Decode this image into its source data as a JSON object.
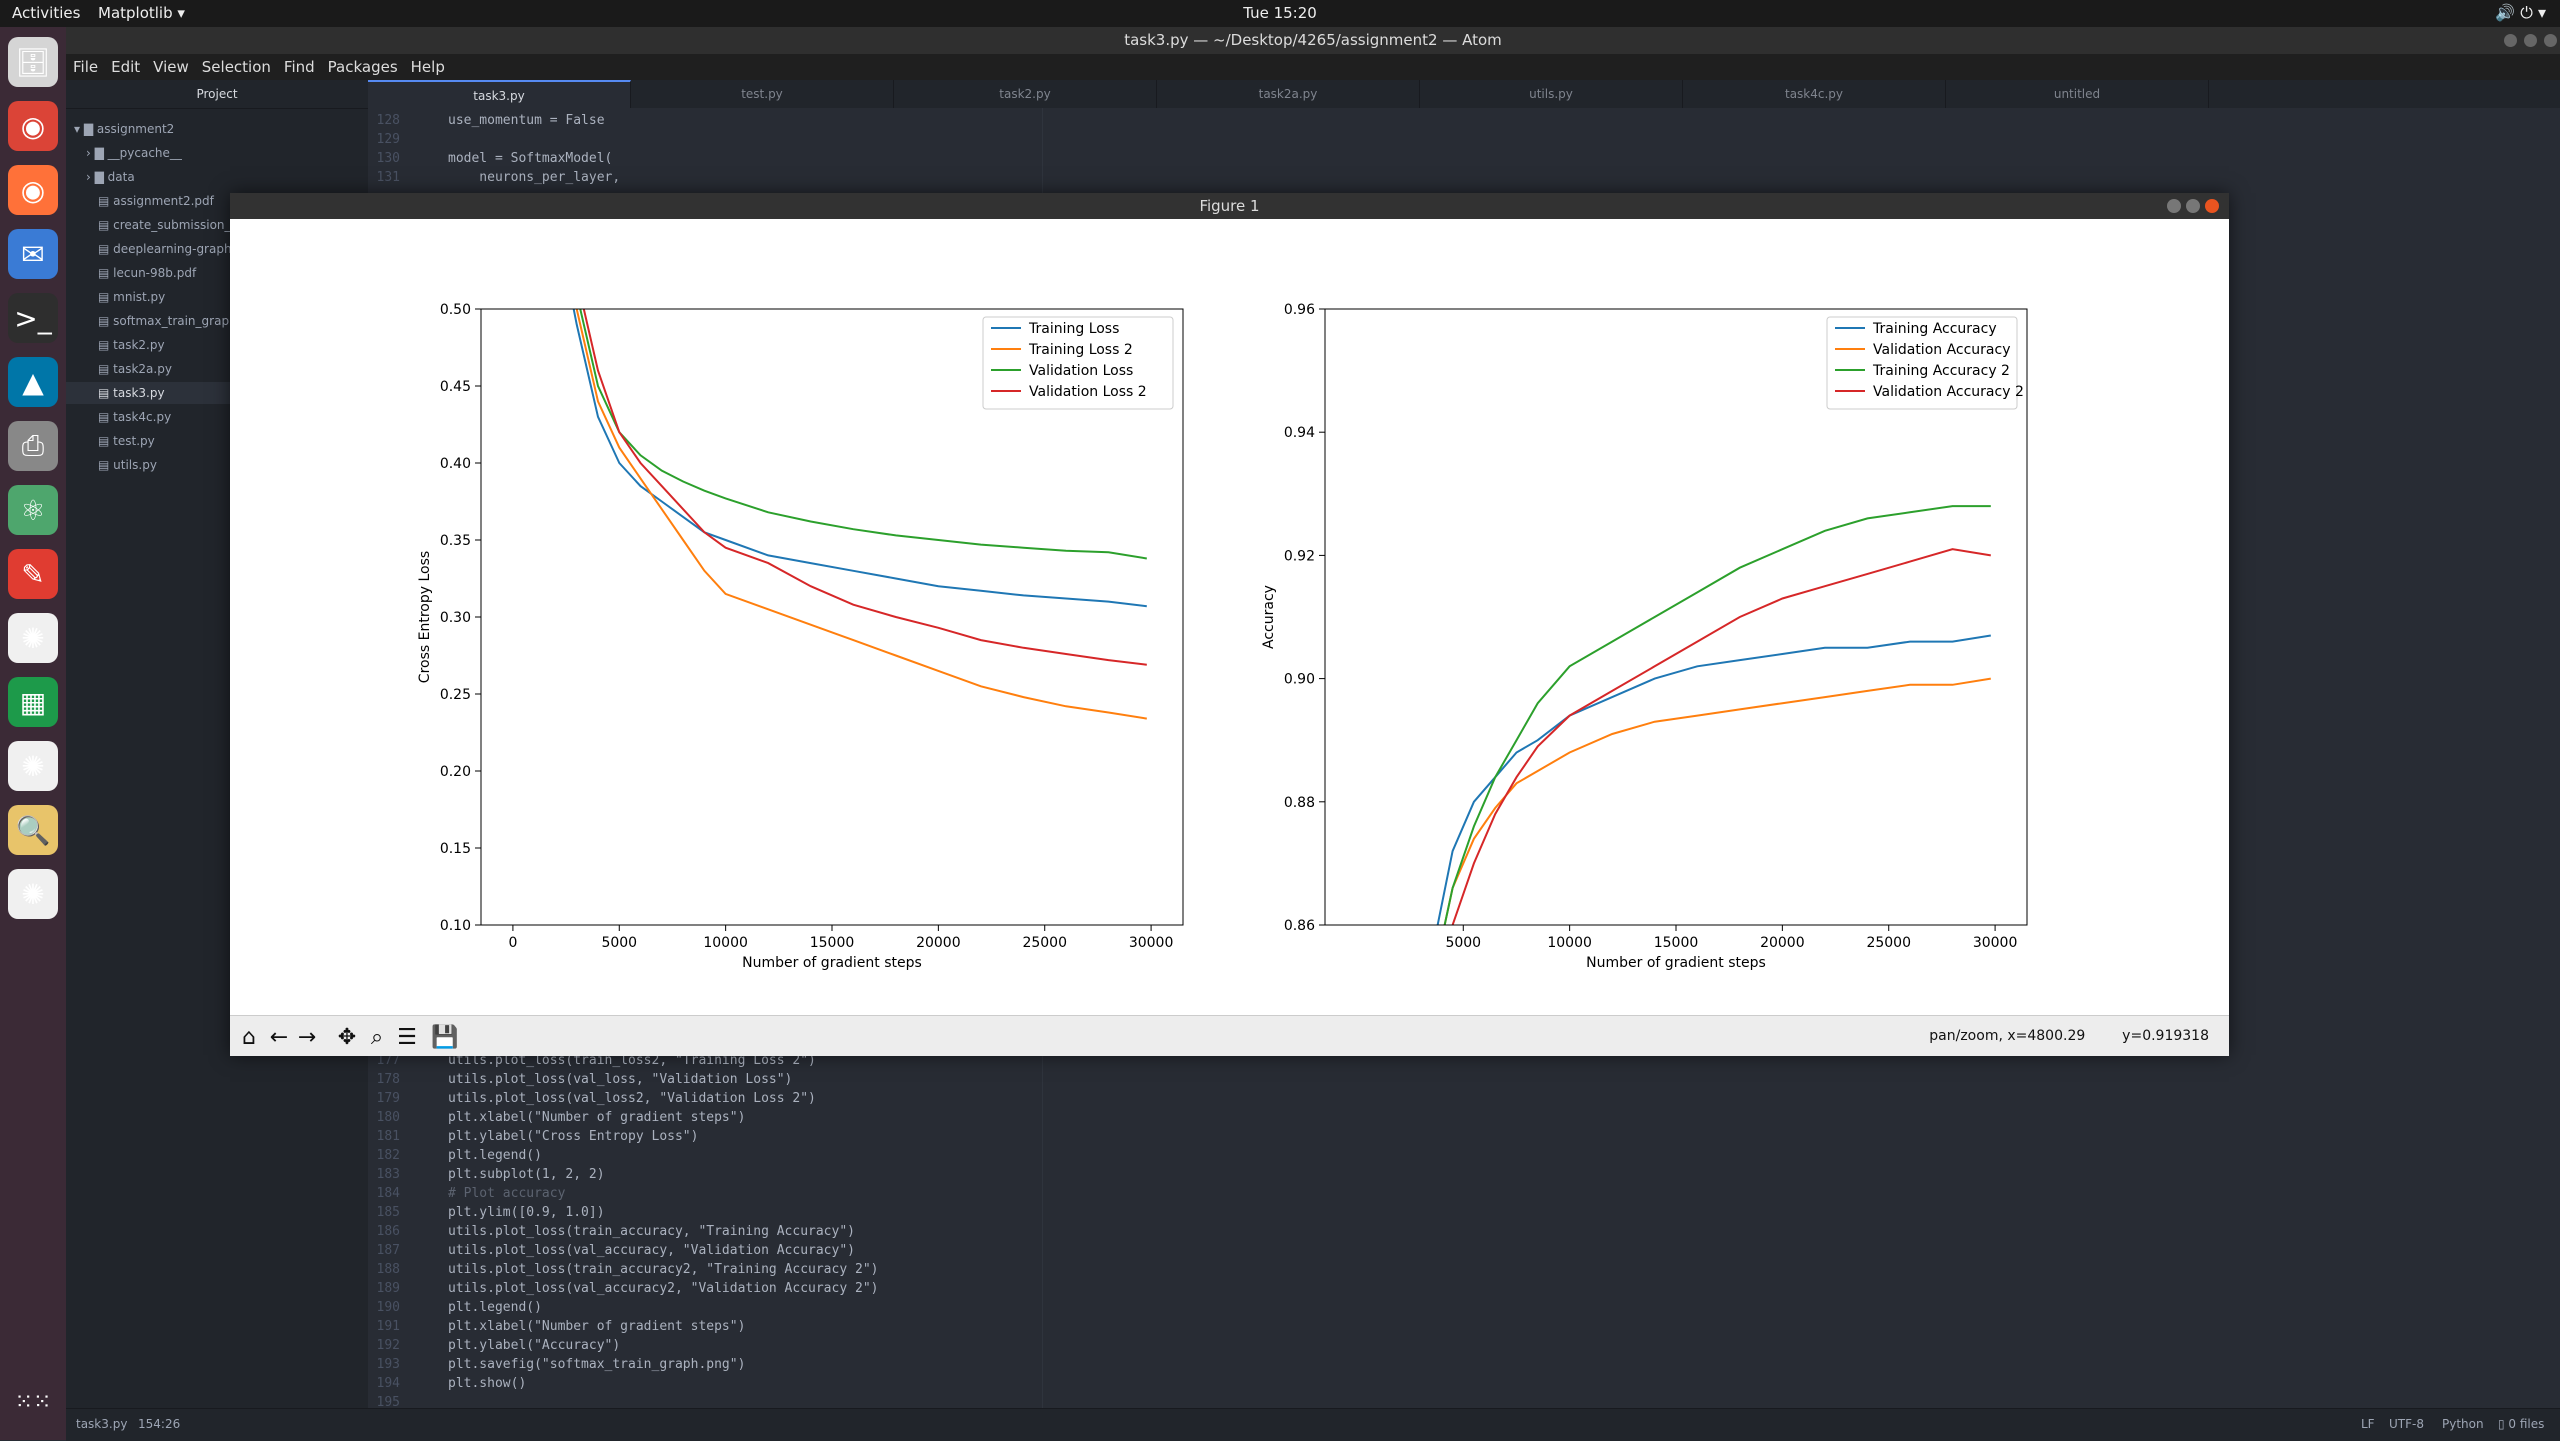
{
  "topbar": {
    "activities": "Activities",
    "app_menu": "Matplotlib ▾",
    "clock": "Tue 15:20",
    "tray": "🔊 ⏻ ▾"
  },
  "dock": [
    {
      "name": "files-icon",
      "glyph": "🗄",
      "color": "#d5d5d5"
    },
    {
      "name": "chrome-icon",
      "glyph": "◉",
      "color": "#db4437"
    },
    {
      "name": "firefox-icon",
      "glyph": "◉",
      "color": "#ff7139"
    },
    {
      "name": "thunderbird-icon",
      "glyph": "✉",
      "color": "#3a7bd5"
    },
    {
      "name": "terminal-icon",
      "glyph": ">_",
      "color": "#2e2e2e"
    },
    {
      "name": "matlab-icon",
      "glyph": "▲",
      "color": "#0076a8"
    },
    {
      "name": "printer-icon",
      "glyph": "⎙",
      "color": "#888888"
    },
    {
      "name": "atom-icon",
      "glyph": "⚛",
      "color": "#4ea66d"
    },
    {
      "name": "pdf-reader-icon",
      "glyph": "✎",
      "color": "#e03c31"
    },
    {
      "name": "matplotlib-icon",
      "glyph": "✺",
      "color": "#f0f0f0"
    },
    {
      "name": "spreadsheet-icon",
      "glyph": "▦",
      "color": "#1d9a4a"
    },
    {
      "name": "matplotlib-icon-2",
      "glyph": "✺",
      "color": "#f0f0f0"
    },
    {
      "name": "image-viewer-icon",
      "glyph": "🔍",
      "color": "#e8c46a"
    },
    {
      "name": "matplotlib-icon-3",
      "glyph": "✺",
      "color": "#f0f0f0"
    }
  ],
  "atom": {
    "title": "task3.py — ~/Desktop/4265/assignment2 — Atom",
    "menu": [
      "File",
      "Edit",
      "View",
      "Selection",
      "Find",
      "Packages",
      "Help"
    ],
    "project_label": "Project",
    "tree": [
      {
        "label": "▾ ▇ assignment2",
        "indent": 0
      },
      {
        "label": "› ▇ __pycache__",
        "indent": 1
      },
      {
        "label": "› ▇ data",
        "indent": 1
      },
      {
        "label": "▤ assignment2.pdf",
        "indent": 2
      },
      {
        "label": "▤ create_submission_",
        "indent": 2
      },
      {
        "label": "▤ deeplearning-graph",
        "indent": 2
      },
      {
        "label": "▤ lecun-98b.pdf",
        "indent": 2
      },
      {
        "label": "▤ mnist.py",
        "indent": 2
      },
      {
        "label": "▤ softmax_train_grapl",
        "indent": 2
      },
      {
        "label": "▤ task2.py",
        "indent": 2
      },
      {
        "label": "▤ task2a.py",
        "indent": 2
      },
      {
        "label": "▤ task3.py",
        "indent": 2,
        "selected": true
      },
      {
        "label": "▤ task4c.py",
        "indent": 2
      },
      {
        "label": "▤ test.py",
        "indent": 2
      },
      {
        "label": "▤ utils.py",
        "indent": 2
      }
    ],
    "tabs": [
      "task3.py",
      "test.py",
      "task2.py",
      "task2a.py",
      "utils.py",
      "task4c.py",
      "untitled"
    ],
    "code_top": [
      {
        "n": "128",
        "t": "use_momentum = False"
      },
      {
        "n": "129",
        "t": ""
      },
      {
        "n": "130",
        "t": "model = SoftmaxModel("
      },
      {
        "n": "131",
        "t": "    neurons_per_layer,"
      }
    ],
    "code_bottom": [
      {
        "n": "177",
        "t": "utils.plot_loss(train_loss2, \"Training Loss 2\")"
      },
      {
        "n": "178",
        "t": "utils.plot_loss(val_loss, \"Validation Loss\")"
      },
      {
        "n": "179",
        "t": "utils.plot_loss(val_loss2, \"Validation Loss 2\")"
      },
      {
        "n": "180",
        "t": "plt.xlabel(\"Number of gradient steps\")"
      },
      {
        "n": "181",
        "t": "plt.ylabel(\"Cross Entropy Loss\")"
      },
      {
        "n": "182",
        "t": "plt.legend()"
      },
      {
        "n": "183",
        "t": "plt.subplot(1, 2, 2)"
      },
      {
        "n": "184",
        "t": "# Plot accuracy"
      },
      {
        "n": "185",
        "t": "plt.ylim([0.9, 1.0])"
      },
      {
        "n": "186",
        "t": "utils.plot_loss(train_accuracy, \"Training Accuracy\")"
      },
      {
        "n": "187",
        "t": "utils.plot_loss(val_accuracy, \"Validation Accuracy\")"
      },
      {
        "n": "188",
        "t": "utils.plot_loss(train_accuracy2, \"Training Accuracy 2\")"
      },
      {
        "n": "189",
        "t": "utils.plot_loss(val_accuracy2, \"Validation Accuracy 2\")"
      },
      {
        "n": "190",
        "t": "plt.legend()"
      },
      {
        "n": "191",
        "t": "plt.xlabel(\"Number of gradient steps\")"
      },
      {
        "n": "192",
        "t": "plt.ylabel(\"Accuracy\")"
      },
      {
        "n": "193",
        "t": "plt.savefig(\"softmax_train_graph.png\")"
      },
      {
        "n": "194",
        "t": "plt.show()"
      },
      {
        "n": "195",
        "t": ""
      }
    ],
    "status": {
      "file": "task3.py",
      "cursor": "154:26",
      "eol": "LF",
      "encoding": "UTF-8",
      "grammar": "Python",
      "files": "▯ 0 files"
    }
  },
  "figure": {
    "title": "Figure 1",
    "coords_x": "pan/zoom, x=4800.29",
    "coords_y": "y=0.919318",
    "colors": {
      "blue": "#1f77b4",
      "orange": "#ff7f0e",
      "green": "#2ca02c",
      "red": "#d62728"
    }
  },
  "chart_data": [
    {
      "type": "line",
      "xlabel": "Number of gradient steps",
      "ylabel": "Cross Entropy Loss",
      "xlim": [
        -1500,
        31500
      ],
      "ylim": [
        0.1,
        0.5
      ],
      "xticks": [
        0,
        5000,
        10000,
        15000,
        20000,
        25000,
        30000
      ],
      "yticks": [
        0.1,
        0.15,
        0.2,
        0.25,
        0.3,
        0.35,
        0.4,
        0.45,
        0.5
      ],
      "legend": "top-right",
      "x": [
        2000,
        3000,
        4000,
        5000,
        6000,
        7000,
        8000,
        9000,
        10000,
        12000,
        14000,
        16000,
        18000,
        20000,
        22000,
        24000,
        26000,
        28000,
        29800
      ],
      "series": [
        {
          "name": "Training Loss",
          "color": "#1f77b4",
          "values": [
            0.56,
            0.49,
            0.43,
            0.4,
            0.385,
            0.375,
            0.365,
            0.355,
            0.35,
            0.34,
            0.335,
            0.33,
            0.325,
            0.32,
            0.317,
            0.314,
            0.312,
            0.31,
            0.307
          ]
        },
        {
          "name": "Training Loss 2",
          "color": "#ff7f0e",
          "values": [
            0.57,
            0.5,
            0.44,
            0.41,
            0.39,
            0.37,
            0.35,
            0.33,
            0.315,
            0.305,
            0.295,
            0.285,
            0.275,
            0.265,
            0.255,
            0.248,
            0.242,
            0.238,
            0.234
          ]
        },
        {
          "name": "Validation Loss",
          "color": "#2ca02c",
          "values": [
            0.58,
            0.51,
            0.45,
            0.42,
            0.405,
            0.395,
            0.388,
            0.382,
            0.377,
            0.368,
            0.362,
            0.357,
            0.353,
            0.35,
            0.347,
            0.345,
            0.343,
            0.342,
            0.338
          ]
        },
        {
          "name": "Validation Loss 2",
          "color": "#d62728",
          "values": [
            0.58,
            0.52,
            0.46,
            0.42,
            0.4,
            0.385,
            0.37,
            0.355,
            0.345,
            0.335,
            0.32,
            0.308,
            0.3,
            0.293,
            0.285,
            0.28,
            0.276,
            0.272,
            0.269
          ]
        }
      ]
    },
    {
      "type": "line",
      "xlabel": "Number of gradient steps",
      "ylabel": "Accuracy",
      "xlim": [
        -1500,
        31500
      ],
      "ylim": [
        0.86,
        0.96
      ],
      "xticks": [
        5000,
        10000,
        15000,
        20000,
        25000,
        30000
      ],
      "yticks": [
        0.86,
        0.88,
        0.9,
        0.92,
        0.94,
        0.96
      ],
      "legend": "top-right",
      "x": [
        3500,
        4500,
        5500,
        6500,
        7500,
        8500,
        10000,
        12000,
        14000,
        16000,
        18000,
        20000,
        22000,
        24000,
        26000,
        28000,
        29800
      ],
      "series": [
        {
          "name": "Training Accuracy",
          "color": "#1f77b4",
          "values": [
            0.855,
            0.872,
            0.88,
            0.884,
            0.888,
            0.89,
            0.894,
            0.897,
            0.9,
            0.902,
            0.903,
            0.904,
            0.905,
            0.905,
            0.906,
            0.906,
            0.907
          ]
        },
        {
          "name": "Validation Accuracy",
          "color": "#ff7f0e",
          "values": [
            0.85,
            0.866,
            0.874,
            0.879,
            0.883,
            0.885,
            0.888,
            0.891,
            0.893,
            0.894,
            0.895,
            0.896,
            0.897,
            0.898,
            0.899,
            0.899,
            0.9
          ]
        },
        {
          "name": "Training Accuracy 2",
          "color": "#2ca02c",
          "values": [
            0.85,
            0.866,
            0.876,
            0.884,
            0.89,
            0.896,
            0.902,
            0.906,
            0.91,
            0.914,
            0.918,
            0.921,
            0.924,
            0.926,
            0.927,
            0.928,
            0.928
          ]
        },
        {
          "name": "Validation Accuracy 2",
          "color": "#d62728",
          "values": [
            0.845,
            0.86,
            0.87,
            0.878,
            0.884,
            0.889,
            0.894,
            0.898,
            0.902,
            0.906,
            0.91,
            0.913,
            0.915,
            0.917,
            0.919,
            0.921,
            0.92
          ]
        }
      ]
    }
  ]
}
